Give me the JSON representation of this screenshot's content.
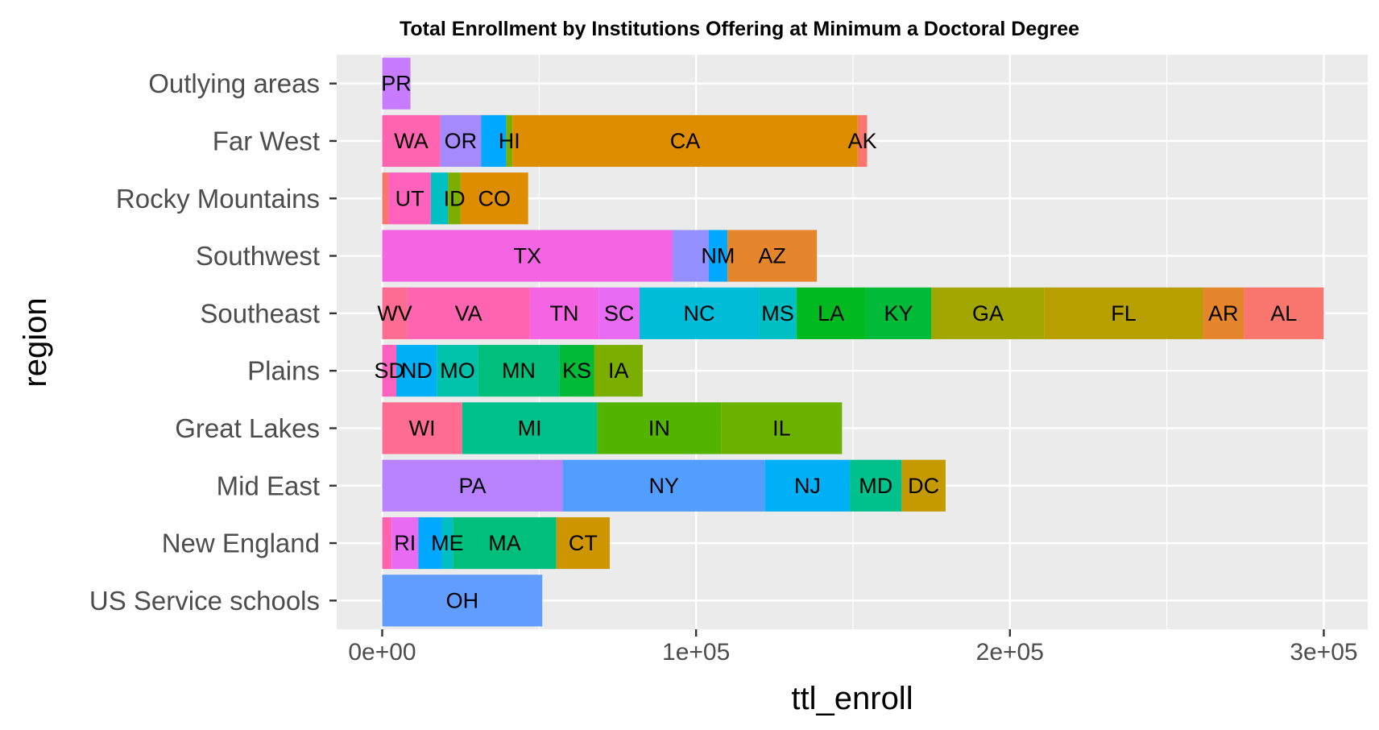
{
  "chart_data": {
    "type": "bar",
    "orientation": "horizontal",
    "stacked": true,
    "title": "Total Enrollment by Institutions Offering at Minimum a Doctoral Degree",
    "xlabel": "ttl_enroll",
    "ylabel": "region",
    "xlim": [
      -14500,
      314000
    ],
    "xticks": [
      0,
      100000,
      200000,
      300000
    ],
    "xtick_labels": [
      "0e+00",
      "1e+05",
      "2e+05",
      "3e+05"
    ],
    "grid": true,
    "legend": "none",
    "categories": [
      "Outlying areas",
      "Far West",
      "Rocky Mountains",
      "Southwest",
      "Southeast",
      "Plains",
      "Great Lakes",
      "Mid East",
      "New England",
      "US Service schools"
    ],
    "bars": [
      {
        "region": "Outlying areas",
        "segments": [
          {
            "state": "PR",
            "value": 9000,
            "color": "#C77CFF"
          }
        ]
      },
      {
        "region": "Far West",
        "segments": [
          {
            "state": "WA",
            "value": 18500,
            "color": "#FF64B0"
          },
          {
            "state": "OR",
            "value": 13000,
            "color": "#A58AFF"
          },
          {
            "state": "",
            "value": 8000,
            "color": "#00A9FF"
          },
          {
            "state": "HI",
            "value": 2000,
            "color": "#7CAE00"
          },
          {
            "state": "CA",
            "value": 110000,
            "color": "#DE8C00"
          },
          {
            "state": "AK",
            "value": 3000,
            "color": "#F8766D"
          }
        ]
      },
      {
        "region": "Rocky Mountains",
        "segments": [
          {
            "state": "",
            "value": 2000,
            "color": "#F8766D"
          },
          {
            "state": "UT",
            "value": 13500,
            "color": "#FF62BC"
          },
          {
            "state": "",
            "value": 5500,
            "color": "#00BFC4"
          },
          {
            "state": "ID",
            "value": 4000,
            "color": "#7CAE00"
          },
          {
            "state": "CO",
            "value": 21500,
            "color": "#DE8C00"
          }
        ]
      },
      {
        "region": "Southwest",
        "segments": [
          {
            "state": "TX",
            "value": 92500,
            "color": "#F564E3"
          },
          {
            "state": "",
            "value": 11500,
            "color": "#9590FF"
          },
          {
            "state": "NM",
            "value": 6000,
            "color": "#00A9FF"
          },
          {
            "state": "AZ",
            "value": 28500,
            "color": "#E6862C"
          }
        ]
      },
      {
        "region": "Southeast",
        "segments": [
          {
            "state": "WV",
            "value": 8000,
            "color": "#FF6C91"
          },
          {
            "state": "VA",
            "value": 39000,
            "color": "#FF64B0"
          },
          {
            "state": "TN",
            "value": 22000,
            "color": "#F564E3"
          },
          {
            "state": "SC",
            "value": 13000,
            "color": "#E76BF3"
          },
          {
            "state": "NC",
            "value": 38000,
            "color": "#00BCD8"
          },
          {
            "state": "MS",
            "value": 12000,
            "color": "#00BFC4"
          },
          {
            "state": "LA",
            "value": 22000,
            "color": "#00B81F"
          },
          {
            "state": "KY",
            "value": 21000,
            "color": "#00BA38"
          },
          {
            "state": "GA",
            "value": 36000,
            "color": "#A3A500"
          },
          {
            "state": "FL",
            "value": 50500,
            "color": "#B79F00"
          },
          {
            "state": "AR",
            "value": 13000,
            "color": "#E6862C"
          },
          {
            "state": "AL",
            "value": 25500,
            "color": "#F8766D"
          }
        ]
      },
      {
        "region": "Plains",
        "segments": [
          {
            "state": "SD",
            "value": 4500,
            "color": "#FF62BC"
          },
          {
            "state": "ND",
            "value": 13000,
            "color": "#00B0F6"
          },
          {
            "state": "MO",
            "value": 13000,
            "color": "#00C1AA"
          },
          {
            "state": "MN",
            "value": 26000,
            "color": "#00BF7D"
          },
          {
            "state": "KS",
            "value": 11000,
            "color": "#00BA38"
          },
          {
            "state": "IA",
            "value": 15500,
            "color": "#7CAE00"
          }
        ]
      },
      {
        "region": "Great Lakes",
        "segments": [
          {
            "state": "WI",
            "value": 25500,
            "color": "#FF6C91"
          },
          {
            "state": "MI",
            "value": 43000,
            "color": "#00C08B"
          },
          {
            "state": "IN",
            "value": 39500,
            "color": "#53B400"
          },
          {
            "state": "IL",
            "value": 38500,
            "color": "#6BB100"
          }
        ]
      },
      {
        "region": "Mid East",
        "segments": [
          {
            "state": "PA",
            "value": 57500,
            "color": "#B983FF"
          },
          {
            "state": "NY",
            "value": 64500,
            "color": "#529EFF"
          },
          {
            "state": "NJ",
            "value": 27000,
            "color": "#00B0F6"
          },
          {
            "state": "MD",
            "value": 16500,
            "color": "#00C08B"
          },
          {
            "state": "DC",
            "value": 14000,
            "color": "#C49A00"
          }
        ]
      },
      {
        "region": "New England",
        "segments": [
          {
            "state": "",
            "value": 3000,
            "color": "#FF64B0"
          },
          {
            "state": "RI",
            "value": 8500,
            "color": "#E76BF3"
          },
          {
            "state": "",
            "value": 7500,
            "color": "#00A9FF"
          },
          {
            "state": "ME",
            "value": 3500,
            "color": "#00BFC4"
          },
          {
            "state": "MA",
            "value": 33000,
            "color": "#00BF7D"
          },
          {
            "state": "CT",
            "value": 17000,
            "color": "#CD9600"
          }
        ]
      },
      {
        "region": "US Service schools",
        "segments": [
          {
            "state": "OH",
            "value": 51000,
            "color": "#619CFF"
          }
        ]
      }
    ]
  }
}
